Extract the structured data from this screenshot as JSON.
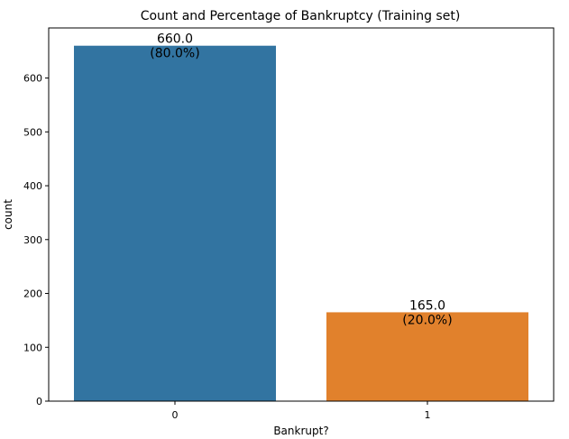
{
  "chart_data": {
    "type": "bar",
    "title": "Count and Percentage of Bankruptcy (Training set)",
    "xlabel": "Bankrupt?",
    "ylabel": "count",
    "categories": [
      "0",
      "1"
    ],
    "values": [
      660,
      165
    ],
    "value_labels": [
      "660.0",
      "165.0"
    ],
    "percent_labels": [
      "(80.0%)",
      "(20.0%)"
    ],
    "colors": [
      "#3274a1",
      "#e1812c"
    ],
    "ylim": [
      0,
      693
    ],
    "yticks": [
      0,
      100,
      200,
      300,
      400,
      500,
      600
    ],
    "grid": false,
    "legend": "none"
  }
}
